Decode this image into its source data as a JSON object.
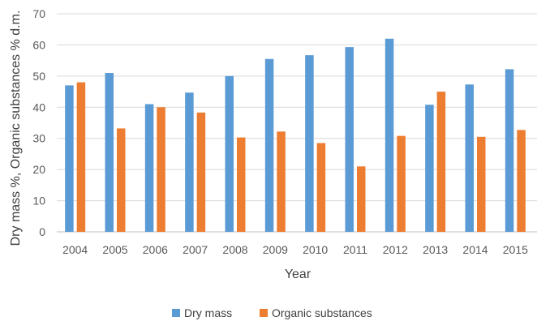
{
  "chart_data": {
    "type": "bar",
    "categories": [
      "2004",
      "2005",
      "2006",
      "2007",
      "2008",
      "2009",
      "2010",
      "2011",
      "2012",
      "2013",
      "2014",
      "2015"
    ],
    "series": [
      {
        "name": "Dry mass",
        "color": "#5b9bd5",
        "values": [
          47.0,
          51.0,
          41.0,
          44.7,
          50.0,
          55.5,
          56.7,
          59.3,
          62.0,
          40.8,
          47.3,
          52.2
        ]
      },
      {
        "name": "Organic substances",
        "color": "#ed7d31",
        "values": [
          48.0,
          33.2,
          40.0,
          38.3,
          30.3,
          32.2,
          28.5,
          21.0,
          30.8,
          45.0,
          30.5,
          32.7
        ]
      }
    ],
    "xlabel": "Year",
    "ylabel": "Dry mass %, Organic substances % d.m.",
    "ylim": [
      0,
      70
    ],
    "yticks": [
      0,
      10,
      20,
      30,
      40,
      50,
      60,
      70
    ],
    "grid": true,
    "legend_position": "bottom"
  }
}
